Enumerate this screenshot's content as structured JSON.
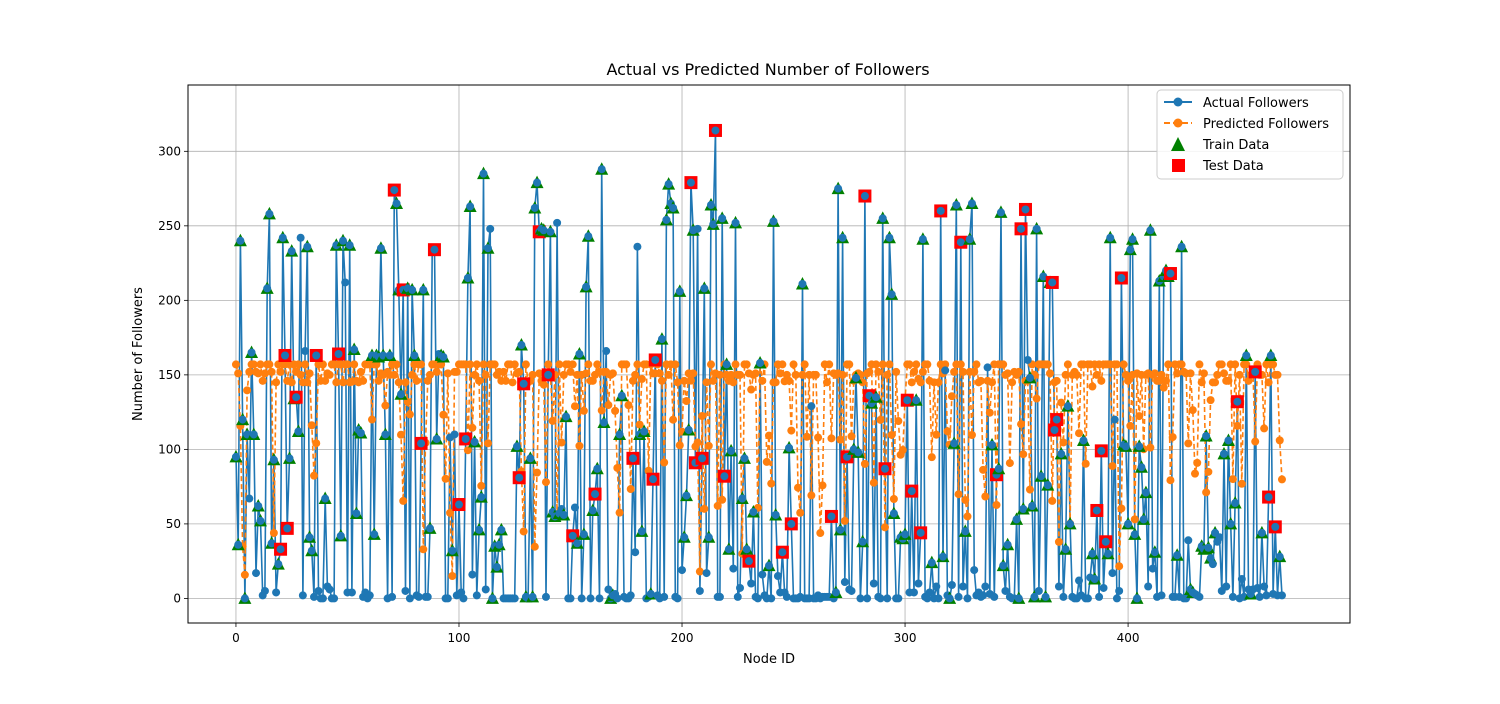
{
  "chart_data": {
    "type": "line",
    "title": "Actual vs Predicted Number of Followers",
    "xlabel": "Node ID",
    "ylabel": "Number of Followers",
    "xlim": [
      -21.5,
      499.5
    ],
    "ylim": [
      -16.5,
      344.5
    ],
    "x_ticks": [
      0,
      100,
      200,
      300,
      400
    ],
    "y_ticks": [
      0,
      50,
      100,
      150,
      200,
      250,
      300
    ],
    "grid": true,
    "legend_position": "top-right",
    "colors": {
      "actual": "#1f77b4",
      "predicted": "#ff7f0e",
      "train": "#008000",
      "test": "#ff0000"
    },
    "series": [
      {
        "name": "Actual Followers",
        "style": "solid line with circle markers",
        "key": "actual"
      },
      {
        "name": "Predicted Followers",
        "style": "dashed line with circle markers",
        "key": "predicted"
      },
      {
        "name": "Train Data",
        "style": "triangle markers",
        "key": "train"
      },
      {
        "name": "Test Data",
        "style": "square markers",
        "key": "test"
      }
    ],
    "node_count": 477,
    "actual_values": [
      95,
      36,
      240,
      120,
      0,
      110,
      67,
      165,
      110,
      17,
      62,
      52,
      2,
      5,
      208,
      258,
      37,
      93,
      4,
      23,
      33,
      242,
      163,
      47,
      94,
      233,
      134,
      135,
      112,
      242,
      2,
      166,
      236,
      41,
      32,
      1,
      163,
      5,
      0,
      0,
      67,
      8,
      6,
      0,
      0,
      237,
      164,
      42,
      240,
      212,
      4,
      237,
      4,
      167,
      57,
      113,
      111,
      1,
      4,
      0,
      2,
      163,
      43,
      163,
      162,
      235,
      163,
      110,
      0,
      163,
      1,
      274,
      265,
      207,
      137,
      207,
      5,
      208,
      0,
      207,
      163,
      2,
      1,
      104,
      207,
      1,
      1,
      47,
      233,
      234,
      107,
      164,
      163,
      162,
      0,
      0,
      108,
      32,
      110,
      2,
      63,
      4,
      0,
      107,
      215,
      263,
      16,
      105,
      2,
      46,
      68,
      285,
      6,
      235,
      248,
      0,
      35,
      21,
      36,
      46,
      0,
      0,
      0,
      0,
      0,
      0,
      102,
      81,
      170,
      144,
      1,
      0,
      94,
      1,
      262,
      279,
      246,
      248,
      247,
      1,
      150,
      246,
      58,
      55,
      252,
      57,
      60,
      56,
      122,
      0,
      0,
      42,
      61,
      37,
      164,
      0,
      43,
      209,
      243,
      0,
      59,
      70,
      87,
      0,
      288,
      118,
      166,
      6,
      0,
      2,
      3,
      0,
      110,
      136,
      1,
      0,
      0,
      2,
      94,
      31,
      236,
      110,
      45,
      112,
      0,
      1,
      3,
      80,
      160,
      2,
      0,
      174,
      1,
      254,
      278,
      265,
      262,
      1,
      0,
      206,
      19,
      41,
      69,
      113,
      279,
      247,
      91,
      248,
      5,
      94,
      208,
      17,
      41,
      264,
      251,
      314,
      1,
      1,
      255,
      82,
      157,
      33,
      99,
      20,
      252,
      1,
      7,
      67,
      94,
      33,
      25,
      10,
      58,
      1,
      0,
      158,
      16,
      2,
      0,
      22,
      0,
      253,
      56,
      15,
      4,
      31,
      4,
      1,
      101,
      50,
      0,
      0,
      0,
      1,
      211,
      0,
      0,
      0,
      129,
      0,
      0,
      2,
      0,
      1,
      1,
      1,
      1,
      55,
      0,
      4,
      275,
      46,
      242,
      11,
      95,
      6,
      5,
      100,
      148,
      98,
      0,
      38,
      270,
      0,
      136,
      131,
      10,
      135,
      1,
      0,
      255,
      87,
      0,
      242,
      204,
      57,
      0,
      0,
      41,
      40,
      43,
      133,
      4,
      72,
      4,
      133,
      10,
      44,
      241,
      1,
      0,
      4,
      24,
      0,
      8,
      0,
      260,
      28,
      153,
      2,
      0,
      9,
      104,
      264,
      1,
      239,
      8,
      45,
      0,
      241,
      265,
      19,
      2,
      4,
      1,
      2,
      8,
      155,
      3,
      103,
      1,
      83,
      87,
      259,
      22,
      5,
      36,
      1,
      0,
      0,
      53,
      0,
      248,
      60,
      261,
      160,
      148,
      62,
      1,
      248,
      5,
      82,
      216,
      1,
      76,
      212,
      212,
      113,
      120,
      8,
      97,
      1,
      33,
      129,
      50,
      1,
      0,
      0,
      12,
      2,
      106,
      0,
      0,
      14,
      30,
      13,
      59,
      1,
      99,
      7,
      38,
      30,
      242,
      17,
      120,
      0,
      5,
      215,
      103,
      102,
      50,
      234,
      241,
      43,
      0,
      102,
      88,
      53,
      71,
      8,
      247,
      20,
      31,
      1,
      213,
      2,
      216,
      220,
      216,
      218,
      1,
      1,
      29,
      1,
      236,
      0,
      0,
      39,
      6,
      4,
      3,
      2,
      1,
      35,
      33,
      109,
      34,
      27,
      23,
      44,
      38,
      41,
      5,
      97,
      8,
      106,
      50,
      1,
      64,
      132,
      0,
      13,
      1,
      163,
      6,
      3,
      6,
      152,
      7,
      1,
      44,
      8,
      2,
      68,
      163,
      3,
      48,
      2,
      28,
      2
    ]
  }
}
